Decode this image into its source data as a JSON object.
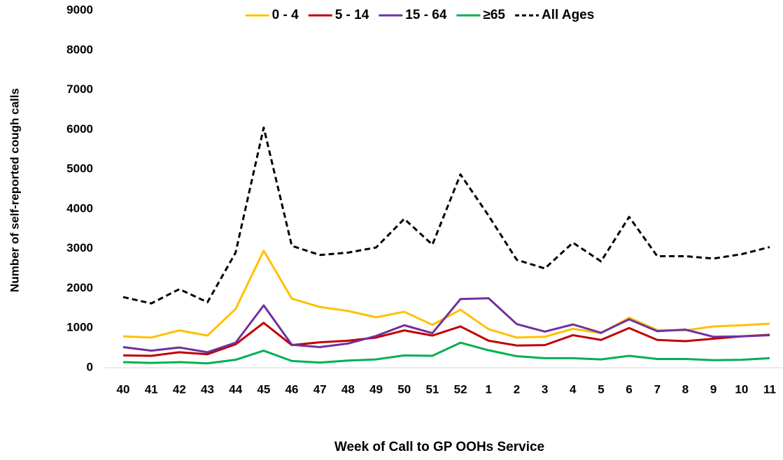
{
  "chart_data": {
    "type": "line",
    "y_label": "Number of self-reported cough calls",
    "x_label": "Week of Call to GP OOHs Service",
    "categories": [
      "40",
      "41",
      "42",
      "43",
      "44",
      "45",
      "46",
      "47",
      "48",
      "49",
      "50",
      "51",
      "52",
      "1",
      "2",
      "3",
      "4",
      "5",
      "6",
      "7",
      "8",
      "9",
      "10",
      "11"
    ],
    "series": [
      {
        "name": "0 - 4",
        "color": "#ffc000",
        "values": [
          790,
          760,
          940,
          810,
          1480,
          2950,
          1740,
          1530,
          1430,
          1270,
          1410,
          1080,
          1460,
          970,
          760,
          780,
          980,
          870,
          1260,
          950,
          940,
          1040,
          1070,
          1110
        ]
      },
      {
        "name": "5 - 14",
        "color": "#c00000",
        "values": [
          310,
          300,
          390,
          340,
          590,
          1130,
          570,
          640,
          680,
          760,
          940,
          810,
          1040,
          680,
          560,
          570,
          820,
          700,
          1000,
          700,
          670,
          730,
          790,
          830
        ]
      },
      {
        "name": "15 - 64",
        "color": "#7030a0",
        "values": [
          520,
          430,
          510,
          390,
          630,
          1570,
          580,
          520,
          610,
          800,
          1070,
          870,
          1730,
          1750,
          1100,
          910,
          1090,
          880,
          1220,
          920,
          960,
          780,
          790,
          820
        ]
      },
      {
        "name": "≥65",
        "color": "#00b050",
        "values": [
          140,
          120,
          140,
          110,
          200,
          430,
          170,
          130,
          180,
          210,
          310,
          300,
          630,
          440,
          290,
          240,
          240,
          210,
          300,
          220,
          220,
          190,
          200,
          240
        ]
      },
      {
        "name": "All Ages",
        "color": "#000000",
        "dashed": true,
        "values": [
          1780,
          1620,
          1980,
          1650,
          2900,
          6050,
          3070,
          2840,
          2900,
          3030,
          3750,
          3100,
          4870,
          3830,
          2720,
          2500,
          3150,
          2680,
          3800,
          2810,
          2810,
          2750,
          2860,
          3040
        ]
      }
    ],
    "ylim": [
      0,
      9000
    ],
    "yticks": [
      0,
      1000,
      2000,
      3000,
      4000,
      5000,
      6000,
      7000,
      8000,
      9000
    ],
    "grid": false,
    "legend": "top"
  }
}
